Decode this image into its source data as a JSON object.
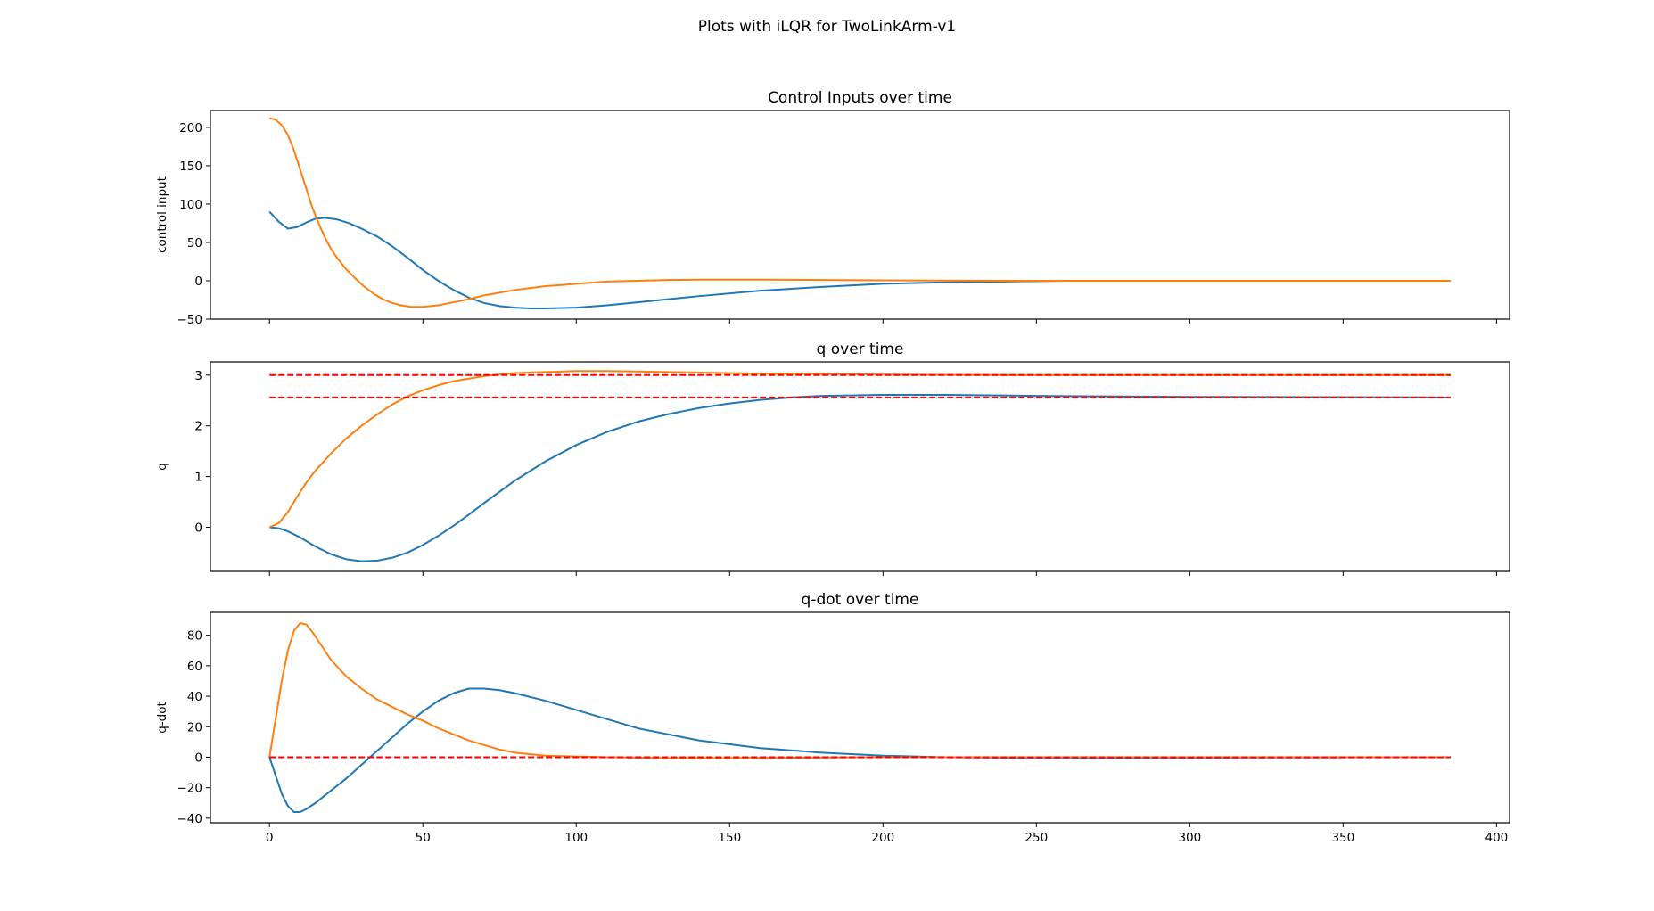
{
  "figure": {
    "suptitle": "Plots with iLQR for TwoLinkArm-v1"
  },
  "colors": {
    "series_1": "#1f77b4",
    "series_2": "#ff7f0e",
    "target": "#ff0000"
  },
  "chart_data": [
    {
      "type": "line",
      "title": "Control Inputs over time",
      "xlabel": "",
      "ylabel": "control input",
      "xlim": [
        -19.25,
        404.25
      ],
      "ylim": [
        -50,
        222
      ],
      "xticks": [
        0,
        50,
        100,
        150,
        200,
        250,
        300,
        350,
        400
      ],
      "xtick_labels_visible": false,
      "yticks": [
        -50,
        0,
        50,
        100,
        150,
        200
      ],
      "grid": false,
      "series": [
        {
          "color": "series_1",
          "dashed": false,
          "x": [
            0,
            3,
            6,
            9,
            12,
            15,
            18,
            22,
            26,
            30,
            35,
            40,
            45,
            50,
            55,
            60,
            65,
            70,
            75,
            80,
            85,
            90,
            100,
            110,
            120,
            140,
            160,
            180,
            200,
            220,
            240,
            260,
            300,
            350,
            385
          ],
          "y": [
            90,
            77,
            68,
            70,
            76,
            81,
            82,
            80,
            75,
            68,
            58,
            45,
            30,
            14,
            0,
            -12,
            -22,
            -29,
            -33,
            -35,
            -36,
            -36,
            -35,
            -32,
            -28,
            -20,
            -13,
            -8,
            -4,
            -2,
            -1,
            0,
            0,
            0,
            0
          ]
        },
        {
          "color": "series_2",
          "dashed": false,
          "x": [
            0,
            2,
            4,
            6,
            8,
            10,
            12,
            14,
            16,
            18,
            20,
            22,
            25,
            28,
            31,
            34,
            37,
            40,
            43,
            46,
            50,
            55,
            60,
            65,
            70,
            80,
            90,
            100,
            110,
            120,
            130,
            140,
            160,
            180,
            200,
            250,
            300,
            385
          ],
          "y": [
            212,
            210,
            203,
            190,
            170,
            145,
            120,
            95,
            75,
            57,
            42,
            30,
            15,
            3,
            -8,
            -17,
            -24,
            -29,
            -32,
            -34,
            -34,
            -32,
            -28,
            -24,
            -19,
            -12,
            -7,
            -4,
            -1,
            0,
            1,
            1.5,
            1.5,
            1,
            0.5,
            0,
            0,
            0
          ]
        }
      ]
    },
    {
      "type": "line",
      "title": "q over time",
      "xlabel": "",
      "ylabel": "q",
      "xlim": [
        -19.25,
        404.25
      ],
      "ylim": [
        -0.87,
        3.26
      ],
      "xticks": [
        0,
        50,
        100,
        150,
        200,
        250,
        300,
        350,
        400
      ],
      "xtick_labels_visible": false,
      "yticks": [
        0,
        1,
        2,
        3
      ],
      "grid": false,
      "series": [
        {
          "color": "series_1",
          "dashed": false,
          "x": [
            0,
            3,
            6,
            10,
            15,
            20,
            25,
            30,
            35,
            40,
            45,
            50,
            55,
            60,
            65,
            70,
            80,
            90,
            100,
            110,
            120,
            130,
            140,
            150,
            160,
            170,
            180,
            200,
            220,
            250,
            300,
            385
          ],
          "y": [
            0,
            -0.02,
            -0.08,
            -0.2,
            -0.38,
            -0.53,
            -0.63,
            -0.67,
            -0.66,
            -0.6,
            -0.5,
            -0.35,
            -0.17,
            0.03,
            0.25,
            0.48,
            0.92,
            1.3,
            1.62,
            1.88,
            2.08,
            2.23,
            2.35,
            2.44,
            2.51,
            2.56,
            2.59,
            2.61,
            2.61,
            2.59,
            2.57,
            2.56
          ]
        },
        {
          "color": "series_2",
          "dashed": false,
          "x": [
            0,
            3,
            6,
            9,
            12,
            15,
            20,
            25,
            30,
            35,
            40,
            45,
            50,
            55,
            60,
            70,
            80,
            90,
            100,
            110,
            120,
            140,
            160,
            180,
            200,
            250,
            300,
            385
          ],
          "y": [
            0,
            0.08,
            0.3,
            0.6,
            0.88,
            1.12,
            1.45,
            1.75,
            2.0,
            2.22,
            2.42,
            2.58,
            2.7,
            2.8,
            2.88,
            2.98,
            3.04,
            3.06,
            3.08,
            3.08,
            3.07,
            3.05,
            3.03,
            3.02,
            3.01,
            3.0,
            3.0,
            3.0
          ]
        },
        {
          "color": "target",
          "dashed": true,
          "x": [
            0,
            385
          ],
          "y": [
            3.0,
            3.0
          ]
        },
        {
          "color": "target",
          "dashed": true,
          "x": [
            0,
            385
          ],
          "y": [
            2.56,
            2.56
          ]
        }
      ]
    },
    {
      "type": "line",
      "title": "q-dot over time",
      "xlabel": "",
      "ylabel": "q-dot",
      "xlim": [
        -19.25,
        404.25
      ],
      "ylim": [
        -43,
        95
      ],
      "xticks": [
        0,
        50,
        100,
        150,
        200,
        250,
        300,
        350,
        400
      ],
      "xtick_labels_visible": true,
      "yticks": [
        -40,
        -20,
        0,
        20,
        40,
        60,
        80
      ],
      "grid": false,
      "series": [
        {
          "color": "series_1",
          "dashed": false,
          "x": [
            0,
            2,
            4,
            6,
            8,
            10,
            12,
            15,
            20,
            25,
            30,
            35,
            40,
            45,
            50,
            55,
            60,
            65,
            70,
            75,
            80,
            90,
            100,
            110,
            120,
            140,
            160,
            180,
            200,
            220,
            250,
            300,
            385
          ],
          "y": [
            0,
            -12,
            -24,
            -32,
            -36,
            -36,
            -34,
            -30,
            -22,
            -14,
            -5,
            4,
            13,
            22,
            30,
            37,
            42,
            45,
            45,
            44,
            42,
            37,
            31,
            25,
            19,
            11,
            6,
            3,
            1,
            0,
            -0.5,
            -0.3,
            0
          ]
        },
        {
          "color": "series_2",
          "dashed": false,
          "x": [
            0,
            2,
            4,
            6,
            8,
            10,
            12,
            14,
            17,
            20,
            25,
            30,
            35,
            40,
            45,
            50,
            55,
            60,
            65,
            70,
            75,
            80,
            90,
            100,
            110,
            130,
            150,
            200,
            250,
            385
          ],
          "y": [
            0,
            25,
            50,
            70,
            83,
            88,
            87,
            82,
            73,
            64,
            53,
            45,
            38,
            33,
            28,
            24,
            19,
            15,
            11,
            8,
            5,
            3,
            1,
            0.5,
            0,
            -0.5,
            -0.5,
            0,
            0,
            0
          ]
        },
        {
          "color": "target",
          "dashed": true,
          "x": [
            0,
            385
          ],
          "y": [
            0,
            0
          ]
        }
      ]
    }
  ]
}
